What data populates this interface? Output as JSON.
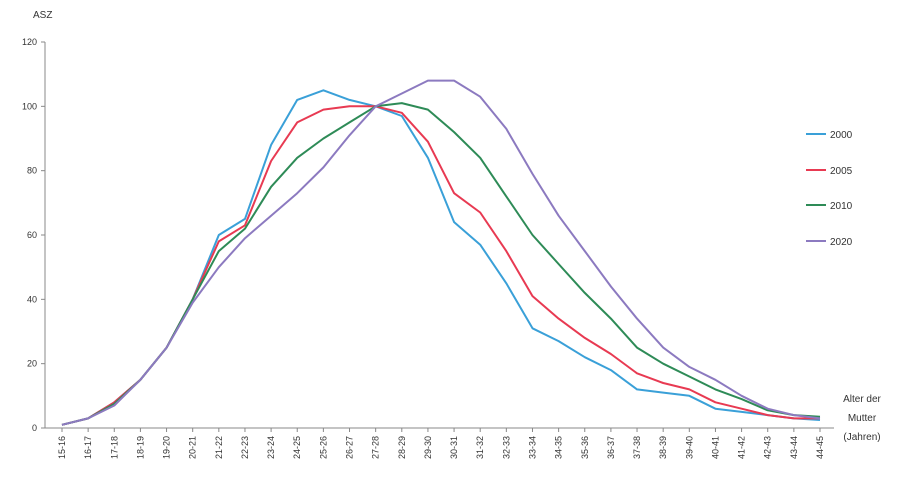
{
  "chart_data": {
    "type": "line",
    "ylabel": "ASZ",
    "xlabel_lines": [
      "Alter der",
      "Mutter",
      "(Jahren)"
    ],
    "ylim": [
      0,
      120
    ],
    "yticks": [
      0,
      20,
      40,
      60,
      80,
      100,
      120
    ],
    "grid": false,
    "legend_position": "right",
    "categories": [
      "15-16",
      "16-17",
      "17-18",
      "18-19",
      "19-20",
      "20-21",
      "21-22",
      "22-23",
      "23-24",
      "24-25",
      "25-26",
      "26-27",
      "27-28",
      "28-29",
      "29-30",
      "30-31",
      "31-32",
      "32-33",
      "33-34",
      "34-35",
      "35-36",
      "36-37",
      "37-38",
      "38-39",
      "39-40",
      "40-41",
      "41-42",
      "42-43",
      "43-44",
      "44-45"
    ],
    "series": [
      {
        "name": "2000",
        "color": "#3aa0d8",
        "values": [
          1,
          3,
          8,
          15,
          25,
          40,
          60,
          65,
          88,
          102,
          105,
          102,
          100,
          97,
          84,
          64,
          57,
          45,
          31,
          27,
          22,
          18,
          12,
          11,
          10,
          6,
          5,
          4,
          3,
          2.5
        ]
      },
      {
        "name": "2005",
        "color": "#e83a52",
        "values": [
          1,
          3,
          8,
          15,
          25,
          40,
          58,
          63,
          83,
          95,
          99,
          100,
          100,
          98,
          89,
          73,
          67,
          55,
          41,
          34,
          28,
          23,
          17,
          14,
          12,
          8,
          6,
          4,
          3,
          3
        ]
      },
      {
        "name": "2010",
        "color": "#2e8b57",
        "values": [
          1,
          3,
          7.5,
          15,
          25,
          40,
          55,
          62,
          75,
          84,
          90,
          95,
          100,
          101,
          99,
          92,
          84,
          72,
          60,
          51,
          42,
          34,
          25,
          20,
          16,
          12,
          9,
          5.5,
          4,
          3.5
        ]
      },
      {
        "name": "2020",
        "color": "#8c7ac0",
        "values": [
          1,
          3,
          7,
          15,
          25,
          39,
          50,
          59,
          66,
          73,
          81,
          91,
          100,
          104,
          108,
          108,
          103,
          93,
          79,
          66,
          55,
          44,
          34,
          25,
          19,
          15,
          10,
          6,
          4,
          3
        ]
      }
    ]
  }
}
